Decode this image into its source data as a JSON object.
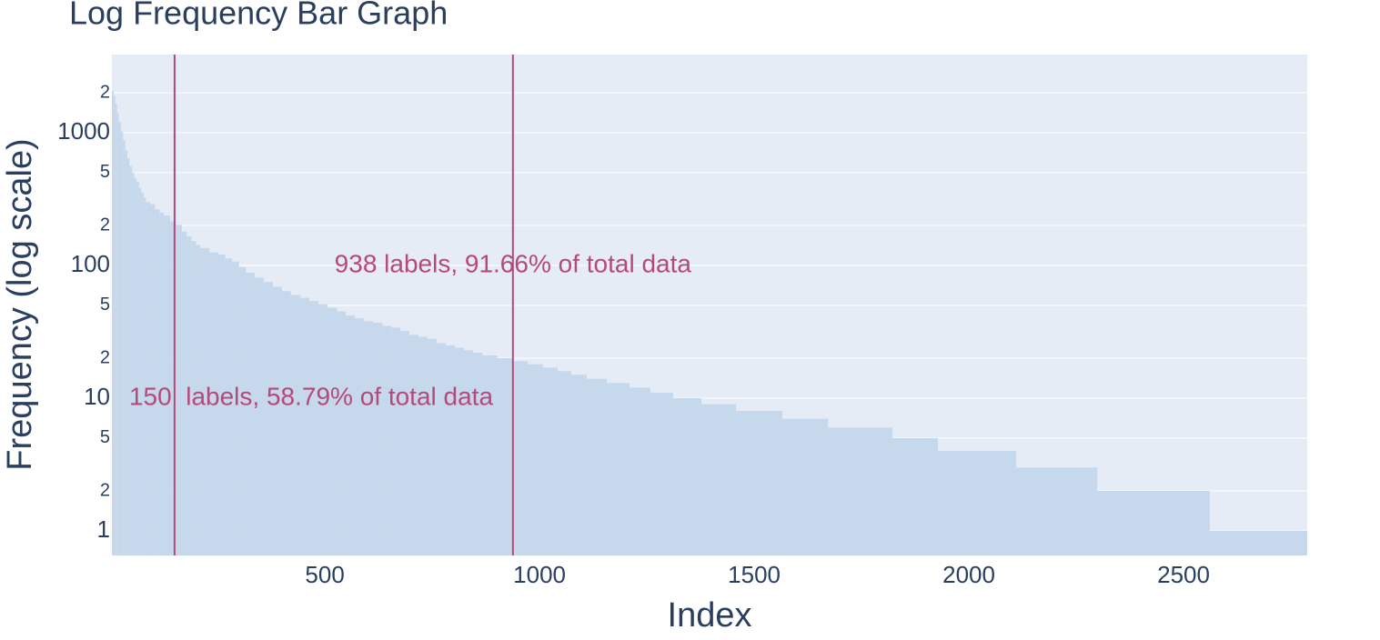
{
  "chart_data": {
    "type": "histogram",
    "title": "Log Frequency Bar Graph",
    "x_label": "Index",
    "y_label": "Frequency (log scale)",
    "color": "#c6d8eb",
    "bins": [
      4,
      8,
      12,
      16,
      20,
      25,
      30,
      35,
      40,
      45,
      51,
      56,
      61,
      67,
      72,
      78,
      83,
      93,
      104,
      115,
      125,
      140,
      152,
      167,
      178,
      189,
      200,
      210,
      231,
      252,
      268,
      284,
      300,
      316,
      337,
      358,
      379,
      400,
      421,
      443,
      464,
      485,
      506,
      528,
      549,
      570,
      591,
      612,
      634,
      655,
      676,
      697,
      718,
      739,
      760,
      782,
      803,
      824,
      845,
      867,
      902,
      940,
      972,
      1008,
      1042,
      1074,
      1110,
      1157,
      1210,
      1258,
      1311,
      1377,
      1458,
      1566,
      1672,
      1822,
      1928,
      2110,
      2299,
      2561,
      2788
    ],
    "values": [
      2050,
      1900,
      1650,
      1400,
      1200,
      1020,
      880,
      740,
      640,
      560,
      500,
      455,
      425,
      385,
      355,
      325,
      300,
      290,
      265,
      250,
      238,
      215,
      202,
      180,
      165,
      153,
      143,
      135,
      125,
      121,
      113,
      107,
      97,
      88,
      81,
      75,
      69,
      64,
      60,
      57,
      54,
      51,
      48,
      45,
      42,
      40,
      38,
      37,
      35,
      34,
      32,
      30,
      29,
      28,
      26,
      25,
      24,
      23,
      22,
      21,
      20,
      19,
      18,
      17,
      16,
      15,
      14,
      13,
      12,
      11,
      10,
      9,
      8,
      7,
      6,
      5,
      4,
      3,
      2,
      1
    ],
    "xlim": [
      4,
      2788
    ],
    "xticks": [
      500,
      1000,
      1500,
      2000,
      2500
    ],
    "ylim": [
      0.653,
      3880
    ],
    "y_log": true,
    "yticks": [
      1,
      {
        "value": 2,
        "label": "2"
      },
      {
        "value": 5,
        "label": "5"
      },
      10,
      {
        "value": 20,
        "label": "2"
      },
      {
        "value": 50,
        "label": "5"
      },
      100,
      {
        "value": 200,
        "label": "2"
      },
      {
        "value": 500,
        "label": "5"
      },
      1000,
      {
        "value": 2000,
        "label": "2"
      }
    ],
    "grid": "y",
    "vlines": [
      150,
      938
    ],
    "vline_color": "#b5497a",
    "annotations": [
      {
        "text": "150  labels, 58.79% of total data",
        "x": 468,
        "y": 10
      },
      {
        "text": "938 labels, 91.66% of total data",
        "x": 938,
        "y": 100
      }
    ]
  }
}
